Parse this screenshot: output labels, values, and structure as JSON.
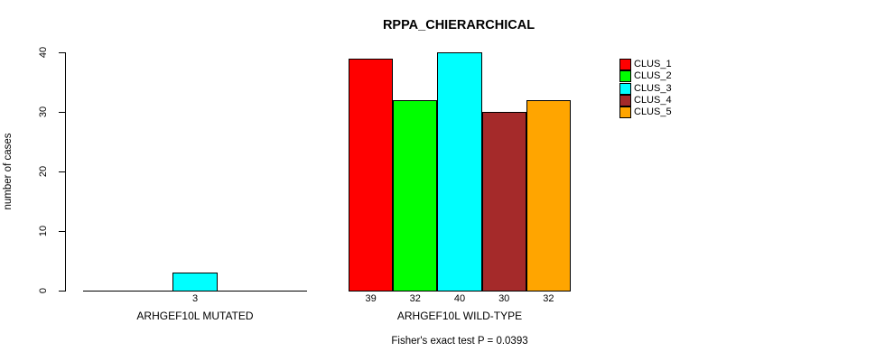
{
  "chart_data": {
    "type": "bar",
    "title": "RPPA_CHIERARCHICAL",
    "ylabel": "number of cases",
    "ylim": [
      0,
      40
    ],
    "yticks": [
      0,
      10,
      20,
      30,
      40
    ],
    "grid": false,
    "legend_position": "top-right",
    "series": [
      {
        "name": "CLUS_1",
        "color": "#ff0000"
      },
      {
        "name": "CLUS_2",
        "color": "#00ff00"
      },
      {
        "name": "CLUS_3",
        "color": "#00ffff"
      },
      {
        "name": "CLUS_4",
        "color": "#a52a2a"
      },
      {
        "name": "CLUS_5",
        "color": "#ffa500"
      }
    ],
    "groups": [
      {
        "label": "ARHGEF10L MUTATED",
        "values": [
          0,
          0,
          3,
          0,
          0
        ]
      },
      {
        "label": "ARHGEF10L WILD-TYPE",
        "values": [
          39,
          32,
          40,
          30,
          32
        ]
      }
    ],
    "footnote": "Fisher's exact test P = 0.0393"
  }
}
